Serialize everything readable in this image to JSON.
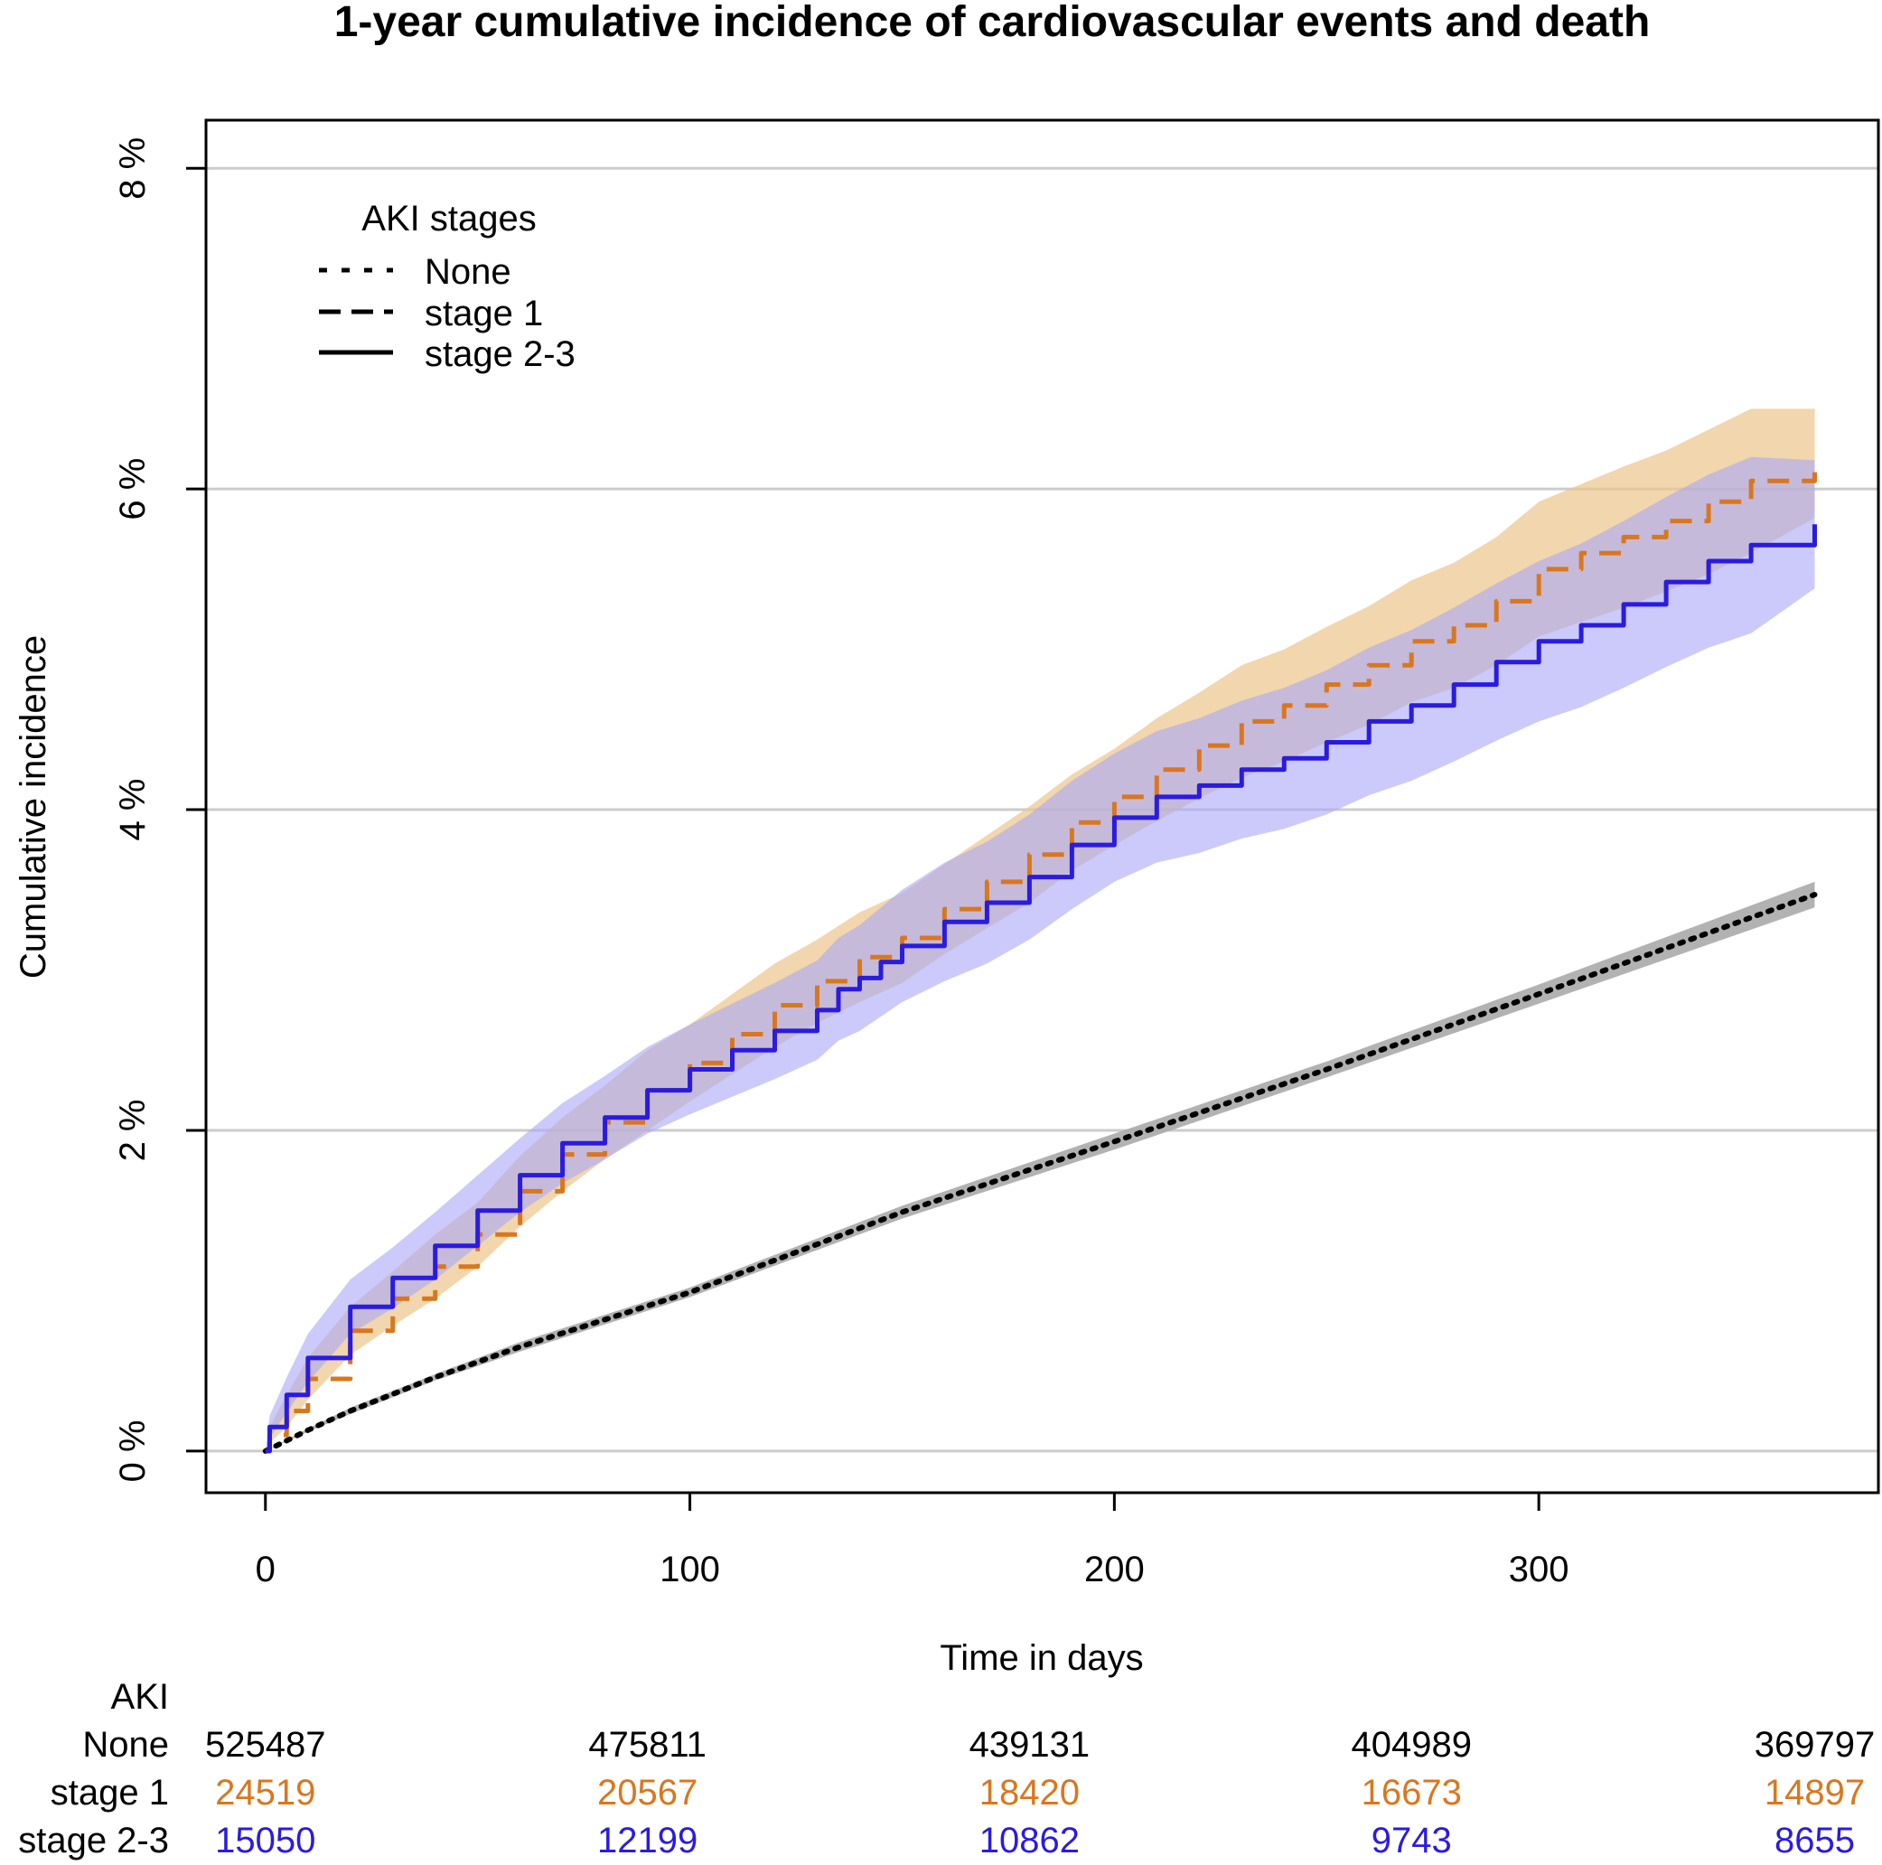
{
  "chart_data": {
    "type": "line",
    "title": "1-year cumulative incidence of cardiovascular events and death",
    "xlabel": "Time in days",
    "ylabel": "Cumulative incidence",
    "xlim": [
      -14,
      380
    ],
    "ylim": [
      -0.26,
      8.3
    ],
    "x_ticks": [
      0,
      100,
      200,
      300
    ],
    "x_tick_labels": [
      "0",
      "100",
      "200",
      "300"
    ],
    "y_ticks": [
      0,
      2,
      4,
      6,
      8
    ],
    "y_tick_labels": [
      "0 %",
      "2 %",
      "4 %",
      "6 %",
      "8 %"
    ],
    "gridlines": "horizontal",
    "legend": {
      "title": "AKI stages",
      "position": "top-left",
      "entries": [
        "None",
        "stage 1",
        "stage 2-3"
      ]
    },
    "series": [
      {
        "name": "None",
        "line_style": "dotted",
        "color": "#000000",
        "band_color": "#aaaaaa",
        "x": [
          0,
          10,
          20,
          40,
          60,
          80,
          100,
          150,
          200,
          250,
          300,
          365
        ],
        "y": [
          0.0,
          0.13,
          0.25,
          0.46,
          0.65,
          0.82,
          0.99,
          1.49,
          1.93,
          2.38,
          2.85,
          3.47
        ],
        "lower": [
          0.0,
          0.12,
          0.23,
          0.44,
          0.62,
          0.79,
          0.96,
          1.45,
          1.88,
          2.33,
          2.79,
          3.39
        ],
        "upper": [
          0.0,
          0.14,
          0.27,
          0.48,
          0.68,
          0.85,
          1.02,
          1.53,
          1.98,
          2.43,
          2.91,
          3.55
        ]
      },
      {
        "name": "stage 1",
        "line_style": "dashed",
        "color": "#d9771e",
        "band_color": "#ecc58c",
        "x": [
          0,
          1,
          5,
          10,
          20,
          30,
          40,
          50,
          60,
          70,
          80,
          90,
          100,
          110,
          120,
          130,
          140,
          150,
          160,
          170,
          180,
          190,
          200,
          210,
          220,
          230,
          240,
          250,
          260,
          270,
          280,
          290,
          300,
          310,
          320,
          330,
          340,
          350,
          365
        ],
        "y": [
          0.0,
          0.1,
          0.25,
          0.45,
          0.75,
          0.95,
          1.15,
          1.35,
          1.62,
          1.85,
          2.05,
          2.25,
          2.42,
          2.6,
          2.78,
          2.93,
          3.08,
          3.2,
          3.38,
          3.55,
          3.72,
          3.92,
          4.08,
          4.25,
          4.4,
          4.55,
          4.65,
          4.78,
          4.9,
          5.05,
          5.15,
          5.3,
          5.5,
          5.6,
          5.7,
          5.8,
          5.92,
          6.05,
          6.17
        ],
        "lower": [
          0.0,
          0.05,
          0.15,
          0.32,
          0.6,
          0.78,
          0.95,
          1.15,
          1.4,
          1.62,
          1.82,
          2.0,
          2.18,
          2.35,
          2.52,
          2.67,
          2.8,
          2.92,
          3.1,
          3.26,
          3.42,
          3.62,
          3.78,
          3.93,
          4.07,
          4.2,
          4.3,
          4.42,
          4.53,
          4.67,
          4.76,
          4.9,
          5.08,
          5.17,
          5.26,
          5.36,
          5.47,
          5.6,
          5.82
        ],
        "upper": [
          0.0,
          0.15,
          0.35,
          0.58,
          0.9,
          1.12,
          1.35,
          1.55,
          1.84,
          2.08,
          2.28,
          2.5,
          2.66,
          2.85,
          3.04,
          3.19,
          3.36,
          3.48,
          3.66,
          3.84,
          4.02,
          4.22,
          4.38,
          4.57,
          4.73,
          4.9,
          5.0,
          5.14,
          5.27,
          5.43,
          5.54,
          5.7,
          5.92,
          6.03,
          6.14,
          6.24,
          6.37,
          6.5,
          6.5
        ]
      },
      {
        "name": "stage 2-3",
        "line_style": "solid",
        "color": "#2a1be0",
        "band_color": "#a9a6f7",
        "x": [
          0,
          1,
          5,
          10,
          20,
          30,
          40,
          50,
          60,
          70,
          80,
          90,
          100,
          110,
          120,
          130,
          135,
          140,
          145,
          150,
          160,
          170,
          180,
          190,
          200,
          210,
          220,
          230,
          240,
          250,
          260,
          270,
          280,
          290,
          300,
          310,
          320,
          330,
          340,
          350,
          365
        ],
        "y": [
          0.0,
          0.15,
          0.35,
          0.58,
          0.9,
          1.08,
          1.28,
          1.5,
          1.72,
          1.92,
          2.08,
          2.25,
          2.38,
          2.5,
          2.62,
          2.75,
          2.88,
          2.95,
          3.05,
          3.15,
          3.3,
          3.42,
          3.58,
          3.78,
          3.95,
          4.08,
          4.15,
          4.25,
          4.32,
          4.42,
          4.55,
          4.65,
          4.78,
          4.92,
          5.05,
          5.15,
          5.28,
          5.42,
          5.55,
          5.65,
          5.78
        ],
        "lower": [
          0.0,
          0.08,
          0.24,
          0.43,
          0.73,
          0.89,
          1.07,
          1.28,
          1.49,
          1.67,
          1.82,
          1.98,
          2.1,
          2.21,
          2.32,
          2.44,
          2.56,
          2.62,
          2.71,
          2.8,
          2.93,
          3.04,
          3.19,
          3.38,
          3.55,
          3.67,
          3.73,
          3.82,
          3.88,
          3.97,
          4.09,
          4.18,
          4.3,
          4.43,
          4.55,
          4.64,
          4.76,
          4.89,
          5.01,
          5.1,
          5.38
        ],
        "upper": [
          0.0,
          0.22,
          0.46,
          0.73,
          1.07,
          1.27,
          1.49,
          1.72,
          1.95,
          2.17,
          2.34,
          2.52,
          2.66,
          2.79,
          2.92,
          3.06,
          3.2,
          3.28,
          3.39,
          3.5,
          3.67,
          3.8,
          3.97,
          4.18,
          4.35,
          4.49,
          4.57,
          4.68,
          4.76,
          4.87,
          5.01,
          5.12,
          5.26,
          5.41,
          5.55,
          5.66,
          5.8,
          5.95,
          6.09,
          6.2,
          6.18
        ]
      }
    ],
    "risk_table": {
      "header": "AKI",
      "times": [
        0,
        90,
        180,
        270,
        365
      ],
      "rows": [
        {
          "label": "None",
          "color": "#000000",
          "values": [
            "525487",
            "475811",
            "439131",
            "404989",
            "369797"
          ]
        },
        {
          "label": "stage 1",
          "color": "#d9771e",
          "values": [
            "24519",
            "20567",
            "18420",
            "16673",
            "14897"
          ]
        },
        {
          "label": "stage 2-3",
          "color": "#2a1be0",
          "values": [
            "15050",
            "12199",
            "10862",
            "9743",
            "8655"
          ]
        }
      ]
    }
  }
}
